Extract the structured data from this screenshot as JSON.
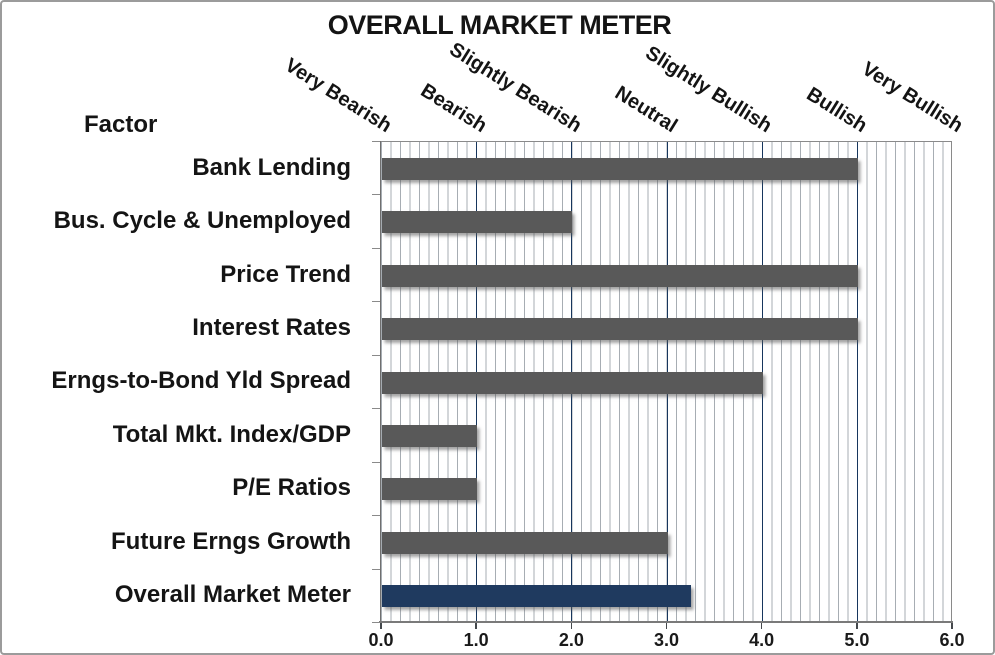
{
  "chart_data": {
    "type": "bar",
    "orientation": "horizontal",
    "title": "OVERALL MARKET METER",
    "axis_header": "Factor",
    "scale_labels": [
      "Very Bearish",
      "Bearish",
      "Slightly Bearish",
      "Neutral",
      "Slightly Bullish",
      "Bullish",
      "Very Bullish"
    ],
    "categories": [
      "Bank Lending",
      "Bus. Cycle & Unemployed",
      "Price Trend",
      "Interest Rates",
      "Erngs-to-Bond Yld Spread",
      "Total Mkt. Index/GDP",
      "P/E Ratios",
      "Future Erngs Growth",
      "Overall Market Meter"
    ],
    "values": [
      5.0,
      2.0,
      5.0,
      5.0,
      4.0,
      1.0,
      1.0,
      3.0,
      3.25
    ],
    "highlight_category": "Overall Market Meter",
    "xlim": [
      0,
      6
    ],
    "x_ticks": [
      "0.0",
      "1.0",
      "2.0",
      "3.0",
      "4.0",
      "5.0",
      "6.0"
    ],
    "grid": true,
    "minor_grid_step": 0.1,
    "major_grid_step": 1.0,
    "legend": "none",
    "colors": {
      "bar": "#595959",
      "highlight_bar": "#1F3A5F",
      "major_grid": "#17365D",
      "minor_grid": "#A7ADB3",
      "text": "#141414"
    }
  }
}
